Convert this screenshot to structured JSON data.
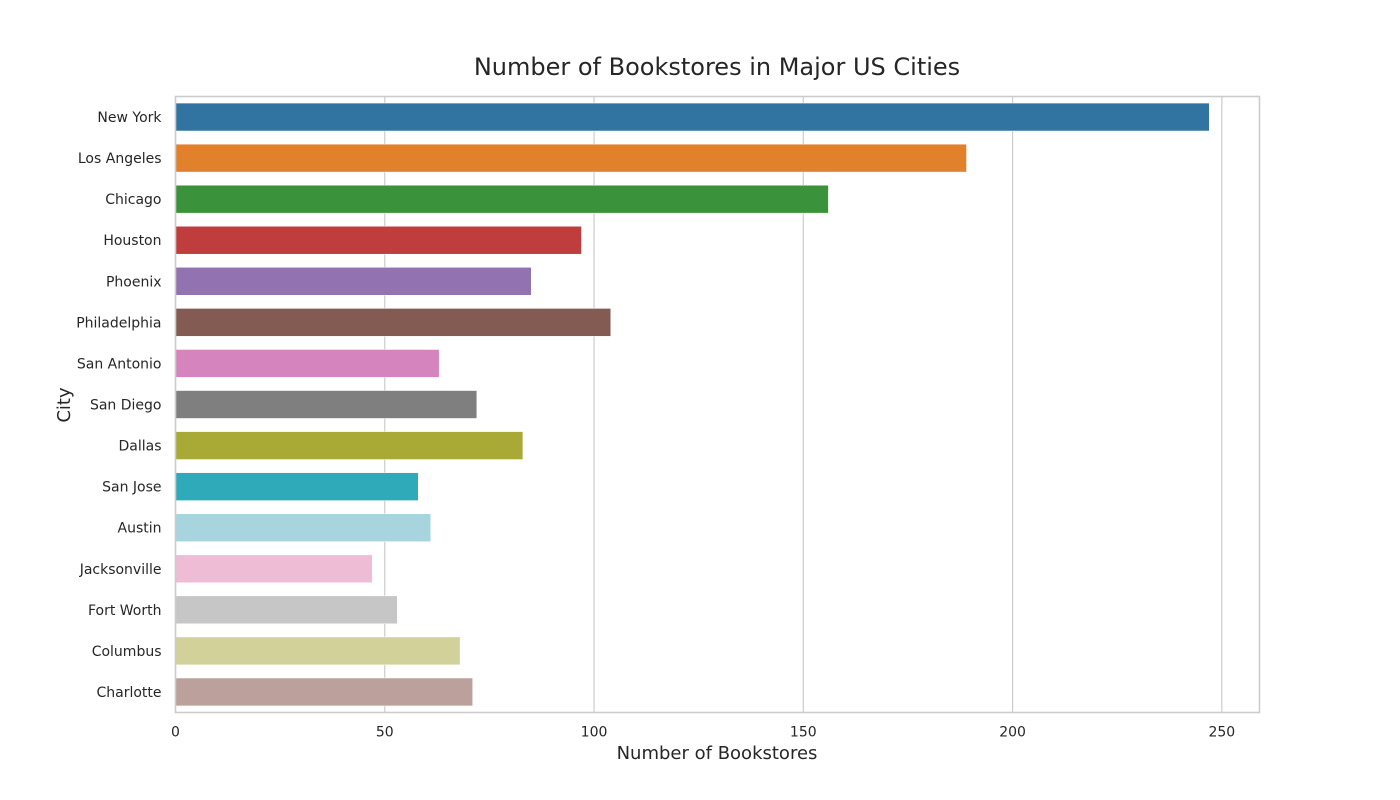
{
  "chart_data": {
    "type": "bar",
    "orientation": "horizontal",
    "title": "Number of Bookstores in Major US Cities",
    "xlabel": "Number of Bookstores",
    "ylabel": "City",
    "xlim": [
      0,
      259
    ],
    "xticks": [
      0,
      50,
      100,
      150,
      200,
      250
    ],
    "grid": true,
    "legend": "none",
    "categories": [
      "New York",
      "Los Angeles",
      "Chicago",
      "Houston",
      "Phoenix",
      "Philadelphia",
      "San Antonio",
      "San Diego",
      "Dallas",
      "San Jose",
      "Austin",
      "Jacksonville",
      "Fort Worth",
      "Columbus",
      "Charlotte"
    ],
    "values": [
      247,
      189,
      156,
      97,
      85,
      104,
      63,
      72,
      83,
      58,
      61,
      47,
      53,
      68,
      71
    ],
    "colors": [
      "#3274a1",
      "#e1812c",
      "#3a923a",
      "#c03d3e",
      "#9372b2",
      "#845b53",
      "#d684bd",
      "#7f7f7f",
      "#a9aa35",
      "#2eaab8",
      "#a7d4de",
      "#efbcd6",
      "#c6c6c6",
      "#d1d199",
      "#bba09b"
    ]
  }
}
